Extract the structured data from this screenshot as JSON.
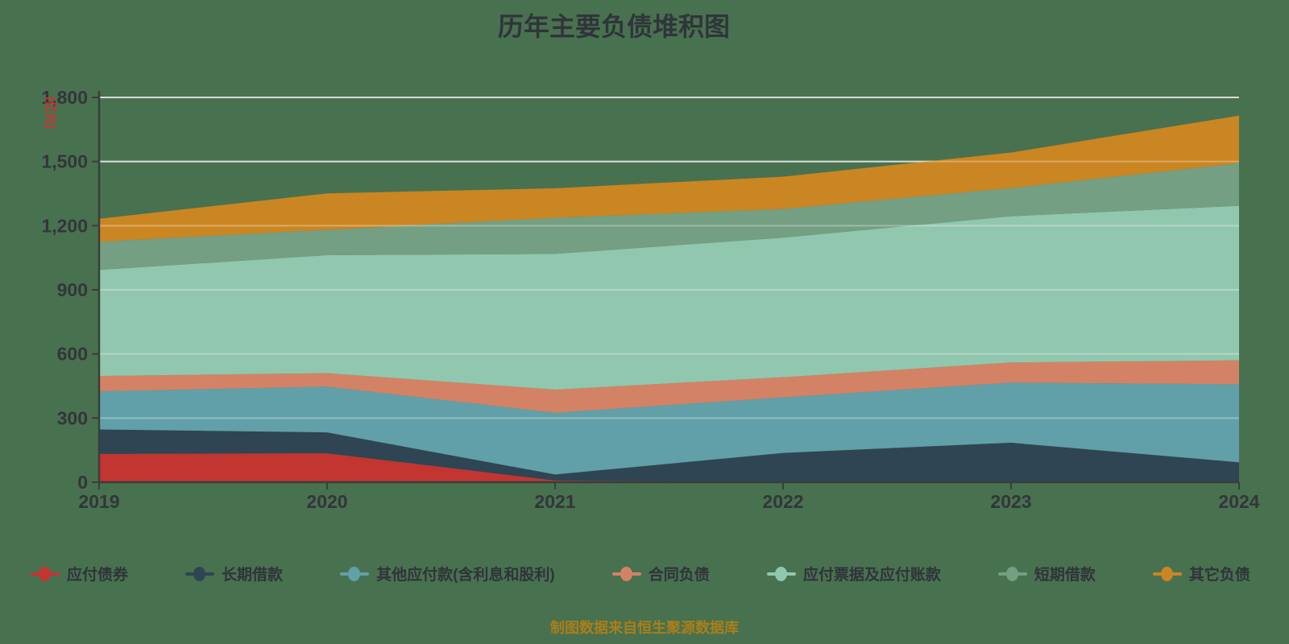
{
  "page": {
    "background": "#487150"
  },
  "title": {
    "text": "历年主要负债堆积图",
    "color": "#30353a"
  },
  "y_axis": {
    "unit_label": "(亿元)",
    "unit_label_color": "#d03030",
    "tick_labels": [
      "0",
      "300",
      "600",
      "900",
      "1,200",
      "1,500",
      "1,800"
    ]
  },
  "footer": {
    "text": "制图数据来自恒生聚源数据库",
    "color": "#ab7e19"
  },
  "chart_data": {
    "type": "area",
    "stacked": true,
    "title": "历年主要负债堆积图",
    "xlabel": "",
    "ylabel": "(亿元)",
    "categories": [
      "2019",
      "2020",
      "2021",
      "2022",
      "2023",
      "2024"
    ],
    "series": [
      {
        "name": "应付债券",
        "color": "#c23531",
        "values": [
          132,
          135,
          8,
          0,
          0,
          0
        ]
      },
      {
        "name": "长期借款",
        "color": "#2f4554",
        "values": [
          115,
          98,
          28,
          137,
          185,
          93
        ]
      },
      {
        "name": "其他应付款(含利息和股利)",
        "color": "#61a0a8",
        "values": [
          178,
          214,
          289,
          260,
          281,
          365
        ]
      },
      {
        "name": "合同负债",
        "color": "#d48265",
        "values": [
          72,
          63,
          108,
          94,
          94,
          112
        ]
      },
      {
        "name": "应付票据及应付账款",
        "color": "#91c7ae",
        "values": [
          496,
          552,
          635,
          653,
          684,
          723
        ]
      },
      {
        "name": "短期借款",
        "color": "#749f83",
        "values": [
          132,
          119,
          169,
          134,
          132,
          199
        ]
      },
      {
        "name": "其它负债",
        "color": "#ca8622",
        "values": [
          107,
          170,
          138,
          151,
          166,
          223
        ]
      }
    ],
    "stack_totals": [
      1232,
      1351,
      1375,
      1429,
      1542,
      1715
    ],
    "ylim": [
      0,
      1800
    ],
    "ytick_step": 300,
    "grid": true,
    "gridline_color": "#c9cec9",
    "axis_color": "#3a3e3b",
    "legend_position": "bottom"
  }
}
